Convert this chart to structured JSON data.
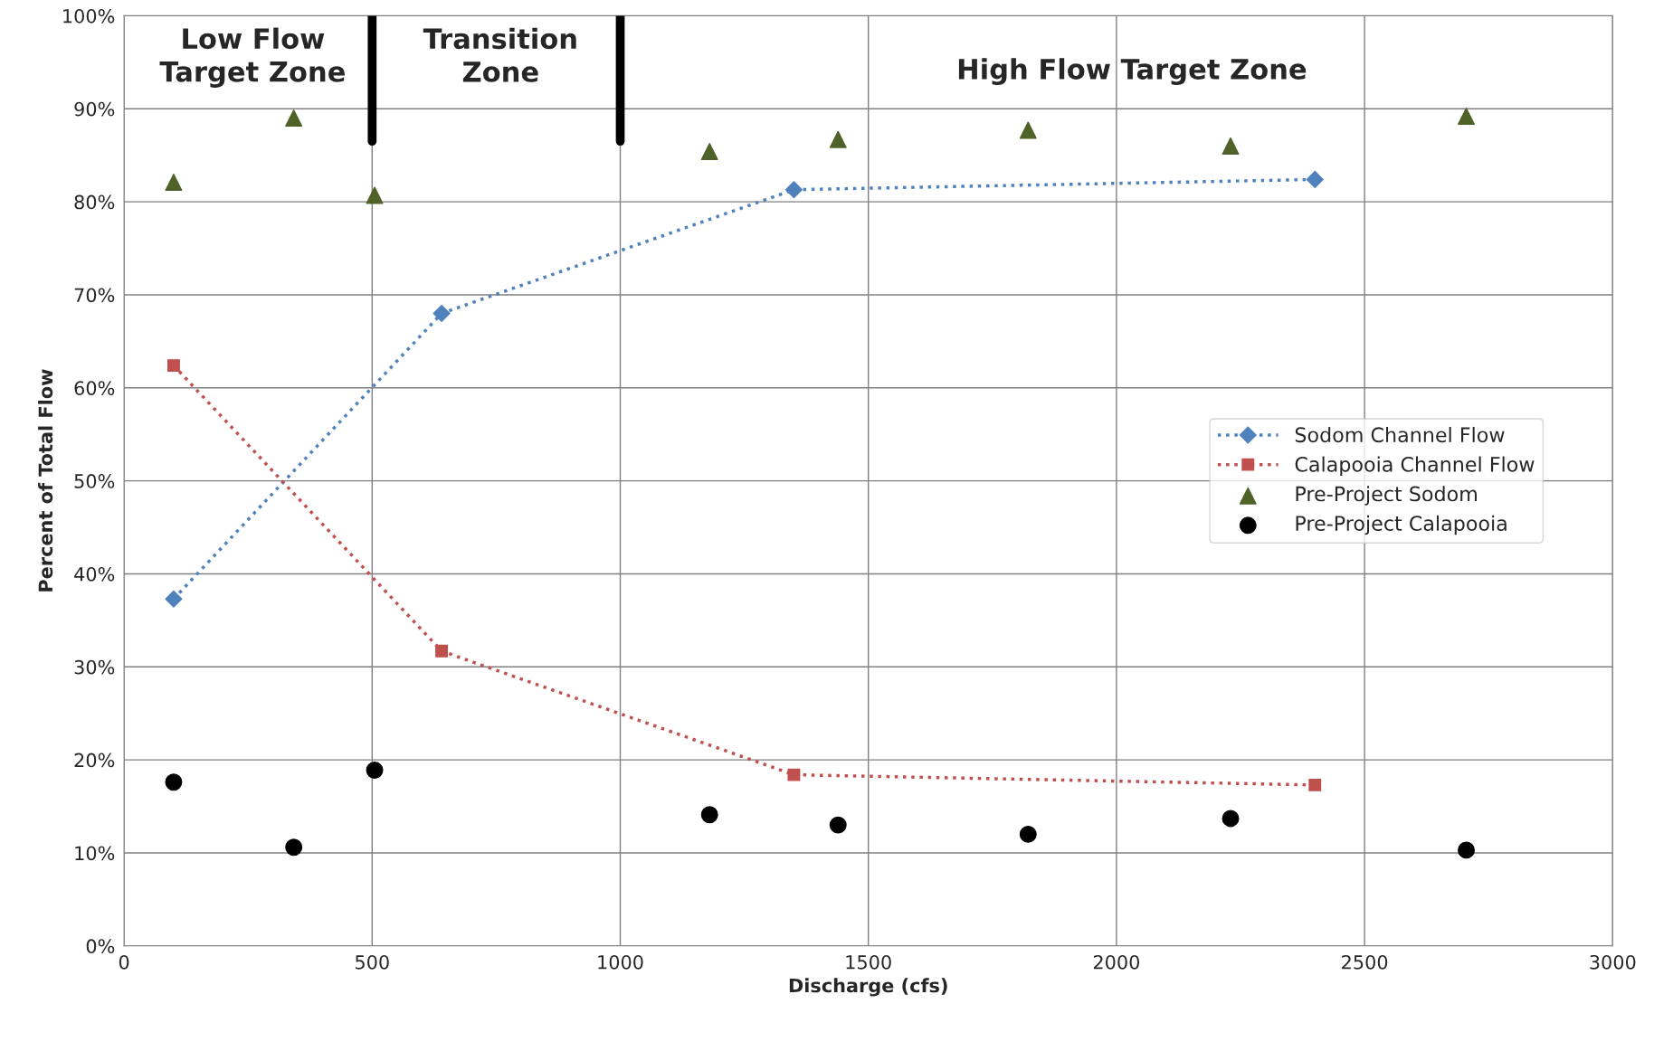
{
  "chart_data": {
    "type": "line",
    "xlabel": "Discharge (cfs)",
    "ylabel": "Percent of Total Flow",
    "xlim": [
      0,
      3000
    ],
    "xticks": [
      0,
      500,
      1000,
      1500,
      2000,
      2500,
      3000
    ],
    "ylim": [
      0,
      100
    ],
    "yticks": [
      {
        "value": 0,
        "label": "0%"
      },
      {
        "value": 10,
        "label": "10%"
      },
      {
        "value": 20,
        "label": "20%"
      },
      {
        "value": 30,
        "label": "30%"
      },
      {
        "value": 40,
        "label": "40%"
      },
      {
        "value": 50,
        "label": "50%"
      },
      {
        "value": 60,
        "label": "60%"
      },
      {
        "value": 70,
        "label": "70%"
      },
      {
        "value": 80,
        "label": "80%"
      },
      {
        "value": 90,
        "label": "90%"
      },
      {
        "value": 100,
        "label": "100%"
      }
    ],
    "grid": true,
    "legend": "right",
    "series": [
      {
        "name": "Sodom Channel Flow",
        "color": "#4f81bd",
        "marker": "diamond",
        "line_style": "dotted",
        "x": [
          100,
          640,
          1350,
          2400
        ],
        "values": [
          37.3,
          68.0,
          81.3,
          82.4
        ]
      },
      {
        "name": "Calapooia Channel Flow",
        "color": "#c0504d",
        "marker": "square",
        "line_style": "dotted",
        "x": [
          100,
          640,
          1350,
          2400
        ],
        "values": [
          62.4,
          31.7,
          18.4,
          17.3
        ]
      },
      {
        "name": "Pre-Project Sodom",
        "type": "scatter",
        "color": "#4f6228",
        "marker": "triangle",
        "x": [
          100,
          342,
          505,
          1180,
          1439,
          1822,
          2230,
          2705
        ],
        "values": [
          82.1,
          89.0,
          80.7,
          85.4,
          86.7,
          87.7,
          86.0,
          89.2
        ]
      },
      {
        "name": "Pre-Project Calapooia",
        "type": "scatter",
        "color": "#000000",
        "marker": "circle",
        "x": [
          100,
          342,
          505,
          1180,
          1439,
          1822,
          2230,
          2705
        ],
        "values": [
          17.6,
          10.6,
          18.9,
          14.1,
          13.0,
          12.0,
          13.7,
          10.3
        ]
      }
    ],
    "ref_lines": [
      {
        "axis": "x",
        "value": 500,
        "color": "#000000"
      },
      {
        "axis": "x",
        "value": 1000,
        "color": "#000000"
      }
    ],
    "annotations": [
      "Low Flow\nTarget Zone",
      "Transition\nZone",
      "High Flow Target Zone"
    ]
  }
}
